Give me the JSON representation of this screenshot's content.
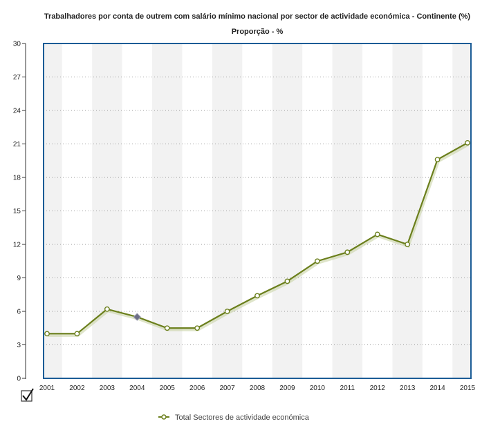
{
  "colors": {
    "series": "#6b7f1c",
    "frame": "#1b5c96",
    "band": "#f2f2f2",
    "grid": "#999999"
  },
  "chart_data": {
    "type": "line",
    "title": "Trabalhadores por conta de outrem com salário mínimo nacional por sector de actividade económica - Continente (%)",
    "subtitle": "Proporção - %",
    "xlabel": "",
    "ylabel": "",
    "ylim": [
      0,
      30
    ],
    "yticks": [
      0,
      3,
      6,
      9,
      12,
      15,
      18,
      21,
      24,
      27,
      30
    ],
    "categories": [
      "2001",
      "2002",
      "2003",
      "2004",
      "2005",
      "2006",
      "2007",
      "2008",
      "2009",
      "2010",
      "2011",
      "2012",
      "2013",
      "2014",
      "2015"
    ],
    "series": [
      {
        "name": "Total Sectores de actividade económica",
        "values": [
          4.0,
          4.0,
          6.2,
          5.5,
          4.5,
          4.5,
          6.0,
          7.4,
          8.7,
          10.5,
          11.3,
          12.9,
          12.0,
          19.6,
          21.1
        ]
      }
    ],
    "highlighted_point": "2004",
    "grid": true,
    "legend": "bottom"
  }
}
